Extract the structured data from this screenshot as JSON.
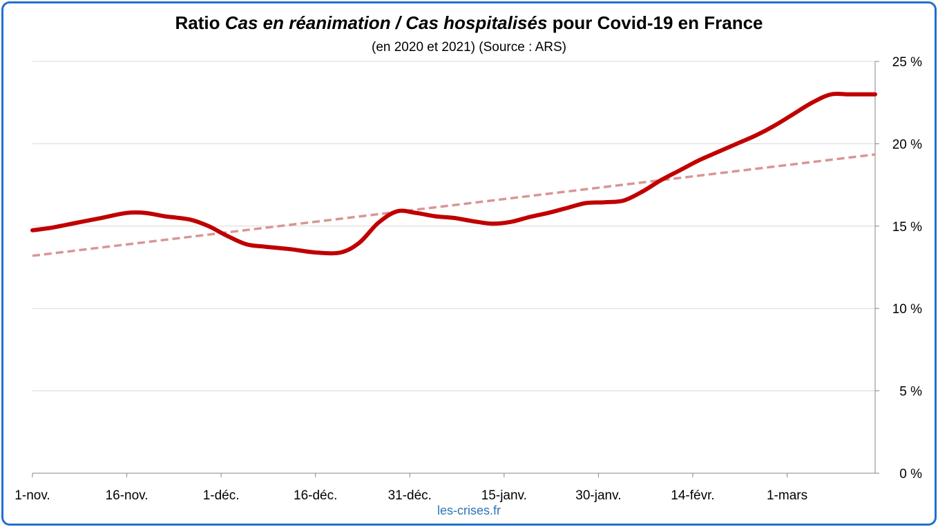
{
  "chart_data": {
    "type": "line",
    "title": {
      "part1": "Ratio ",
      "part2": "Cas en réanimation / Cas hospitalisés",
      "part3": " pour Covid-19 en France"
    },
    "subtitle": "(en 2020 et 2021) (Source : ARS)",
    "credit": "les-crises.fr",
    "xlabel": "",
    "ylabel": "",
    "x_ticks": [
      "1-nov.",
      "16-nov.",
      "1-déc.",
      "16-déc.",
      "31-déc.",
      "15-janv.",
      "30-janv.",
      "14-févr.",
      "1-mars"
    ],
    "x_range_days": [
      0,
      134
    ],
    "y_ticks": [
      "0 %",
      "5 %",
      "10 %",
      "15 %",
      "20 %",
      "25 %"
    ],
    "ylim": [
      0,
      25
    ],
    "grid": true,
    "y_axis_side": "right",
    "series": [
      {
        "x": [
          0,
          3,
          7,
          11,
          15,
          18,
          21,
          25,
          28,
          31,
          34,
          37,
          41,
          45,
          49,
          52,
          55,
          58,
          61,
          64,
          67,
          70,
          73,
          76,
          79,
          82,
          85,
          88,
          91,
          94,
          97,
          100,
          103,
          106,
          109,
          112,
          115,
          118,
          121,
          124,
          127,
          130,
          134
        ],
        "values": [
          14.75,
          14.9,
          15.2,
          15.5,
          15.8,
          15.8,
          15.6,
          15.4,
          15.0,
          14.4,
          13.9,
          13.75,
          13.6,
          13.4,
          13.4,
          14.0,
          15.2,
          15.9,
          15.8,
          15.6,
          15.5,
          15.3,
          15.15,
          15.25,
          15.55,
          15.8,
          16.1,
          16.4,
          16.45,
          16.55,
          17.1,
          17.8,
          18.4,
          19.0,
          19.5,
          20.0,
          20.5,
          21.1,
          21.8,
          22.5,
          23.0,
          23.0,
          23.0
        ],
        "color": "#c00000"
      },
      {
        "x": [
          0,
          134
        ],
        "values": [
          13.2,
          19.35
        ],
        "color": "#d99594"
      }
    ]
  }
}
